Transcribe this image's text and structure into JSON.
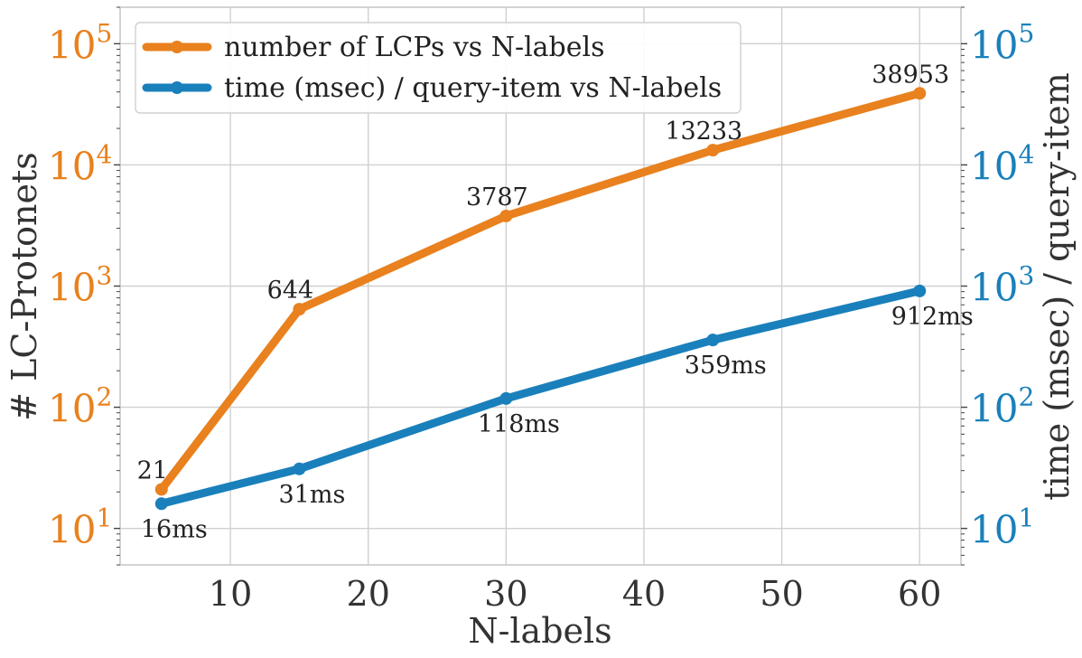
{
  "chart_data": {
    "type": "line",
    "xlabel": "N-labels",
    "ylabel_left": "# LC-Protonets",
    "ylabel_right": "time (msec) / query-item",
    "x": [
      5,
      15,
      30,
      45,
      60
    ],
    "xlim": [
      2,
      63
    ],
    "xticks": [
      10,
      20,
      30,
      40,
      50,
      60
    ],
    "xtick_labels": [
      "10",
      "20",
      "30",
      "40",
      "50",
      "60"
    ],
    "y_scale": "log",
    "ylim": [
      5,
      200000
    ],
    "yticks": [
      10,
      100,
      1000,
      10000,
      100000
    ],
    "ytick_labels": [
      {
        "base": "10",
        "exp": "1"
      },
      {
        "base": "10",
        "exp": "2"
      },
      {
        "base": "10",
        "exp": "3"
      },
      {
        "base": "10",
        "exp": "4"
      },
      {
        "base": "10",
        "exp": "5"
      }
    ],
    "grid": true,
    "legend_position": "top-left",
    "series": [
      {
        "name": "number of LCPs vs N-labels",
        "axis": "left",
        "color": "#e8811e",
        "values": [
          21,
          644,
          3787,
          13233,
          38953
        ],
        "labels": [
          "21",
          "644",
          "3787",
          "13233",
          "38953"
        ]
      },
      {
        "name": "time (msec) / query-item vs N-labels",
        "axis": "right",
        "color": "#1a80bb",
        "values": [
          16,
          31,
          118,
          359,
          912
        ],
        "labels": [
          "16ms",
          "31ms",
          "118ms",
          "359ms",
          "912ms"
        ]
      }
    ]
  }
}
